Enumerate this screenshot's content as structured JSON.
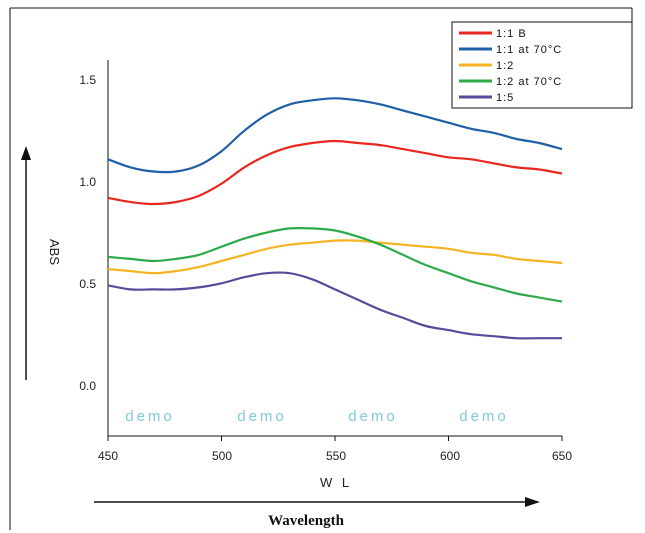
{
  "chart_data": {
    "type": "line",
    "title": "",
    "xlabel": "W L",
    "ylabel": "ABS",
    "xlim": [
      450,
      650
    ],
    "ylim": [
      -0.25,
      1.5
    ],
    "x_ticks": [
      "450",
      "500",
      "550",
      "600",
      "650"
    ],
    "y_ticks": [
      "1.5",
      "1.0",
      "0.5",
      "0.0"
    ],
    "grid": false,
    "legend_position": "top-right",
    "x": [
      450,
      460,
      470,
      480,
      490,
      500,
      510,
      520,
      530,
      540,
      550,
      560,
      570,
      580,
      590,
      600,
      610,
      620,
      630,
      640,
      650
    ],
    "series": [
      {
        "name": "1:1 B",
        "color": "#e8281e",
        "values": [
          0.92,
          0.9,
          0.89,
          0.9,
          0.93,
          0.99,
          1.07,
          1.13,
          1.17,
          1.19,
          1.2,
          1.19,
          1.18,
          1.16,
          1.14,
          1.12,
          1.11,
          1.09,
          1.07,
          1.06,
          1.04
        ]
      },
      {
        "name": "1:1 at 70°C",
        "color": "#1f5fa8",
        "values": [
          1.11,
          1.07,
          1.05,
          1.05,
          1.08,
          1.15,
          1.25,
          1.33,
          1.38,
          1.4,
          1.41,
          1.4,
          1.38,
          1.35,
          1.32,
          1.29,
          1.26,
          1.24,
          1.21,
          1.19,
          1.16
        ]
      },
      {
        "name": "1:2",
        "color": "#f5b321",
        "values": [
          0.57,
          0.56,
          0.55,
          0.56,
          0.58,
          0.61,
          0.64,
          0.67,
          0.69,
          0.7,
          0.71,
          0.71,
          0.7,
          0.69,
          0.68,
          0.67,
          0.65,
          0.64,
          0.62,
          0.61,
          0.6
        ]
      },
      {
        "name": "1:2 at 70°C",
        "color": "#2dab4a",
        "values": [
          0.63,
          0.62,
          0.61,
          0.62,
          0.64,
          0.68,
          0.72,
          0.75,
          0.77,
          0.77,
          0.76,
          0.73,
          0.69,
          0.64,
          0.59,
          0.55,
          0.51,
          0.48,
          0.45,
          0.43,
          0.41
        ]
      },
      {
        "name": "1:5",
        "color": "#5b4a9b",
        "values": [
          0.49,
          0.47,
          0.47,
          0.47,
          0.48,
          0.5,
          0.53,
          0.55,
          0.55,
          0.52,
          0.47,
          0.42,
          0.37,
          0.33,
          0.29,
          0.27,
          0.25,
          0.24,
          0.23,
          0.23,
          0.23
        ]
      }
    ],
    "watermarks": [
      "demo",
      "demo",
      "demo",
      "demo"
    ],
    "caption": "Wavelength"
  }
}
